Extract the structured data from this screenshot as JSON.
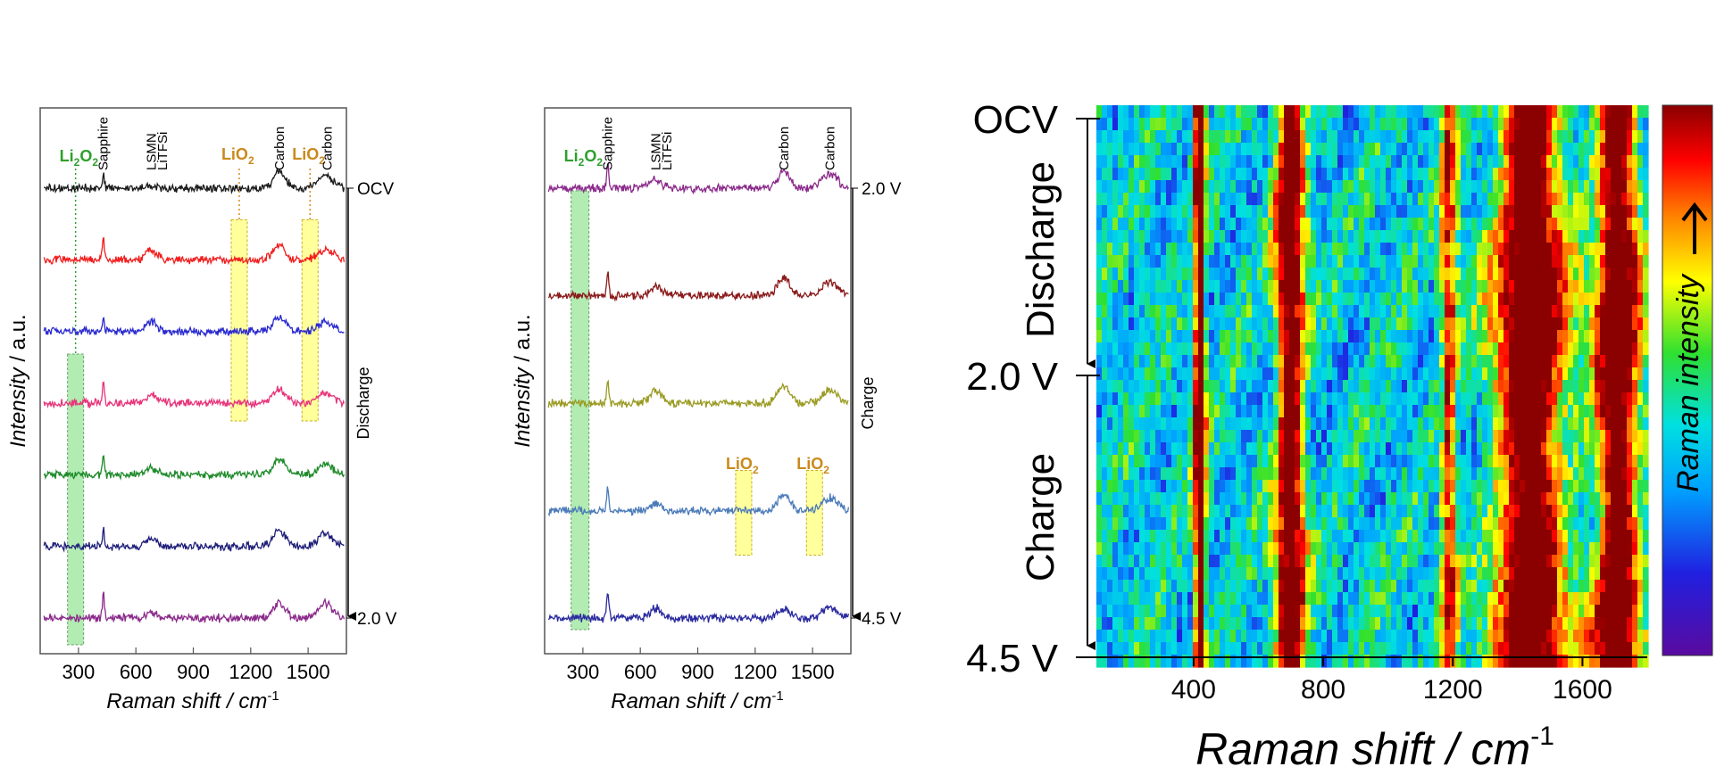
{
  "chart_data": [
    {
      "type": "line",
      "xlabel": "Raman shift / cm",
      "xlabel_sup": "-1",
      "ylabel_italic": "Intensity",
      "ylabel_rest": " / a.u.",
      "xlim": [
        100,
        1700
      ],
      "x_ticks": [
        300,
        600,
        900,
        1200,
        1500
      ],
      "series": [
        {
          "name": "OCV",
          "color": "#1a1a1a",
          "peaks": [
            [
              430,
              0.9,
              8
            ],
            [
              680,
              0.2,
              40
            ],
            [
              1350,
              1.0,
              45
            ],
            [
              1590,
              0.8,
              55
            ]
          ]
        },
        {
          "name": "",
          "color": "#f21c1c",
          "peaks": [
            [
              430,
              1.4,
              8
            ],
            [
              680,
              0.6,
              40
            ],
            [
              1350,
              0.9,
              45
            ],
            [
              1590,
              0.6,
              55
            ]
          ]
        },
        {
          "name": "",
          "color": "#2a2ad0",
          "peaks": [
            [
              430,
              0.9,
              8
            ],
            [
              680,
              0.6,
              40
            ],
            [
              1350,
              0.9,
              45
            ],
            [
              1590,
              0.6,
              55
            ]
          ]
        },
        {
          "name": "",
          "color": "#e8347a",
          "peaks": [
            [
              430,
              1.4,
              8
            ],
            [
              680,
              0.5,
              40
            ],
            [
              1350,
              0.9,
              45
            ],
            [
              1590,
              0.6,
              55
            ]
          ]
        },
        {
          "name": "",
          "color": "#1f8a2a",
          "peaks": [
            [
              430,
              1.3,
              8
            ],
            [
              680,
              0.4,
              40
            ],
            [
              1350,
              0.9,
              45
            ],
            [
              1590,
              0.6,
              55
            ]
          ]
        },
        {
          "name": "",
          "color": "#1f1f7a",
          "peaks": [
            [
              430,
              1.0,
              8
            ],
            [
              680,
              0.5,
              40
            ],
            [
              1350,
              1.0,
              45
            ],
            [
              1590,
              0.8,
              55
            ]
          ]
        },
        {
          "name": "2.0 V",
          "color": "#8b2a8b",
          "peaks": [
            [
              430,
              1.5,
              8
            ],
            [
              680,
              0.3,
              40
            ],
            [
              1350,
              0.9,
              45
            ],
            [
              1590,
              0.9,
              55
            ]
          ]
        }
      ],
      "peak_labels": [
        {
          "text": "Li2O2",
          "main": "Li",
          "sub": "2",
          "mid": "O",
          "sub2": "2",
          "x": 285,
          "color": "#2ca02c"
        },
        {
          "text": "Sapphire",
          "x": 430,
          "color": "#000000"
        },
        {
          "text": "LSMN",
          "x": 680,
          "color": "#000000"
        },
        {
          "text": "LiTFSi",
          "x": 740,
          "color": "#000000"
        },
        {
          "text": "LiO2",
          "main": "LiO",
          "sub": "2",
          "x": 1140,
          "color": "#c98a1c"
        },
        {
          "text": "Carbon",
          "x": 1350,
          "color": "#000000"
        },
        {
          "text": "LiO2",
          "main": "LiO",
          "sub": "2",
          "x": 1510,
          "color": "#c98a1c"
        },
        {
          "text": "Carbon",
          "x": 1600,
          "color": "#000000"
        }
      ],
      "side_labels": {
        "top": "OCV",
        "bottom": "2.0 V",
        "arrow": "Discharge"
      }
    },
    {
      "type": "line",
      "xlabel": "Raman shift / cm",
      "xlabel_sup": "-1",
      "ylabel_italic": "Intensity",
      "ylabel_rest": " / a.u.",
      "xlim": [
        100,
        1700
      ],
      "x_ticks": [
        300,
        600,
        900,
        1200,
        1500
      ],
      "series": [
        {
          "name": "2.0 V",
          "color": "#8b2a8b",
          "peaks": [
            [
              430,
              1.5,
              8
            ],
            [
              680,
              0.6,
              40
            ],
            [
              1350,
              1.1,
              45
            ],
            [
              1590,
              0.9,
              55
            ]
          ]
        },
        {
          "name": "",
          "color": "#8b1a1a",
          "peaks": [
            [
              430,
              1.5,
              8
            ],
            [
              680,
              0.6,
              40
            ],
            [
              1350,
              1.1,
              45
            ],
            [
              1590,
              0.9,
              55
            ]
          ]
        },
        {
          "name": "",
          "color": "#9a9a22",
          "peaks": [
            [
              430,
              1.4,
              8
            ],
            [
              680,
              0.8,
              40
            ],
            [
              1350,
              1.1,
              45
            ],
            [
              1590,
              0.8,
              55
            ]
          ]
        },
        {
          "name": "",
          "color": "#4a7ab8",
          "peaks": [
            [
              430,
              1.3,
              8
            ],
            [
              680,
              0.5,
              40
            ],
            [
              1350,
              1.0,
              45
            ],
            [
              1590,
              0.8,
              55
            ]
          ]
        },
        {
          "name": "4.5 V",
          "color": "#2a2aa0",
          "peaks": [
            [
              430,
              1.6,
              8
            ],
            [
              680,
              0.6,
              40
            ],
            [
              1350,
              0.6,
              45
            ],
            [
              1590,
              0.6,
              55
            ]
          ]
        }
      ],
      "peak_labels": [
        {
          "text": "Li2O2",
          "main": "Li",
          "sub": "2",
          "mid": "O",
          "sub2": "2",
          "x": 285,
          "color": "#2ca02c"
        },
        {
          "text": "Sapphire",
          "x": 430,
          "color": "#000000"
        },
        {
          "text": "LSMN",
          "x": 680,
          "color": "#000000"
        },
        {
          "text": "LiTFSi",
          "x": 740,
          "color": "#000000"
        },
        {
          "text": "Carbon",
          "x": 1350,
          "color": "#000000"
        },
        {
          "text": "Carbon",
          "x": 1590,
          "color": "#000000"
        },
        {
          "text": "LiO2",
          "main": "LiO",
          "sub": "2",
          "x": 1140,
          "color": "#c98a1c"
        },
        {
          "text": "LiO2",
          "main": "LiO",
          "sub": "2",
          "x": 1510,
          "color": "#c98a1c"
        }
      ],
      "side_labels": {
        "top": "2.0 V",
        "bottom": "4.5 V",
        "arrow": "Charge"
      }
    },
    {
      "type": "heatmap",
      "xlabel": "Raman shift / cm",
      "xlabel_sup": "-1",
      "xlim": [
        100,
        1800
      ],
      "x_ticks": [
        400,
        800,
        1200,
        1600
      ],
      "y_labels": [
        "OCV",
        "2.0 V",
        "4.5 V"
      ],
      "arrow_labels": [
        "Discharge",
        "Charge"
      ],
      "colorbar_label": "Raman intensity",
      "colormap": [
        "#5a0aa0",
        "#2020e0",
        "#00a0ff",
        "#00e0e0",
        "#30e030",
        "#ffff00",
        "#ff8000",
        "#ff0000",
        "#8b0000"
      ],
      "bands": [
        {
          "x": 410,
          "width": 18,
          "level": 0.95
        },
        {
          "x": 690,
          "width": 45,
          "level": 0.85
        },
        {
          "x": 1180,
          "width": 25,
          "level": 0.55
        },
        {
          "x": 1430,
          "width": 110,
          "level": 0.9
        },
        {
          "x": 1700,
          "width": 70,
          "level": 0.88
        }
      ]
    }
  ]
}
